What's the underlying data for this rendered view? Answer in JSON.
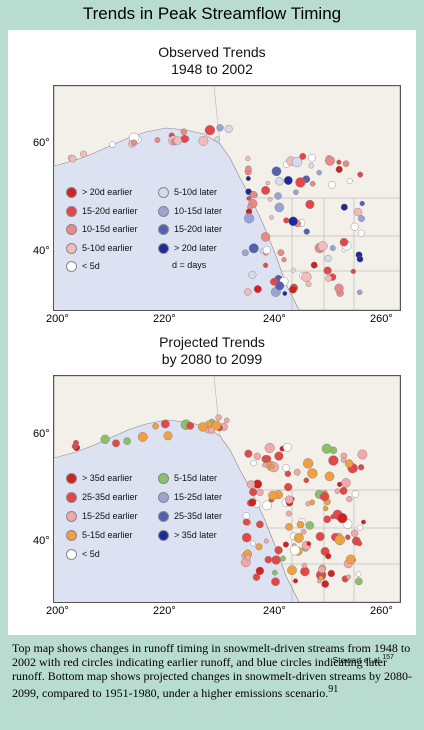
{
  "header": {
    "title": "Trends in Peak Streamflow Timing"
  },
  "maps": [
    {
      "title": "Observed Trends",
      "subtitle": "1948 to 2002",
      "x_ticks": [
        "200°",
        "220°",
        "240°",
        "260°"
      ],
      "y_ticks": [
        "60°",
        "40°"
      ],
      "legend": [
        {
          "label": "> 20d earlier",
          "color": "#d42020"
        },
        {
          "label": "15-20d earlier",
          "color": "#e24848"
        },
        {
          "label": "10-15d earlier",
          "color": "#ea8a88"
        },
        {
          "label": "5-10d earlier",
          "color": "#f2bcbc"
        },
        {
          "label": "< 5d",
          "color": "#ffffff"
        },
        {
          "label": "5-10d later",
          "color": "#d6dcec"
        },
        {
          "label": "10-15d later",
          "color": "#9aa3d3"
        },
        {
          "label": "15-20d later",
          "color": "#5560b2"
        },
        {
          "label": "> 20d later",
          "color": "#202a96"
        }
      ],
      "note": "d = days"
    },
    {
      "title": "Projected Trends",
      "subtitle": "by 2080 to 2099",
      "x_ticks": [
        "200°",
        "220°",
        "240°",
        "260°"
      ],
      "y_ticks": [
        "60°",
        "40°"
      ],
      "legend": [
        {
          "label": "> 35d earlier",
          "color": "#d42020"
        },
        {
          "label": "25-35d earlier",
          "color": "#e24848"
        },
        {
          "label": "15-25d earlier",
          "color": "#f0a8a8"
        },
        {
          "label": "5-15d earlier",
          "color": "#f0a040"
        },
        {
          "label": "< 5d",
          "color": "#ffffff"
        },
        {
          "label": "5-15d later",
          "color": "#8cc068"
        },
        {
          "label": "15-25d later",
          "color": "#9aa3d3"
        },
        {
          "label": "25-35d later",
          "color": "#5560b2"
        },
        {
          "label": "> 35d later",
          "color": "#202a96"
        }
      ]
    }
  ],
  "credit": {
    "text": "Stewart et al.",
    "sup": "157"
  },
  "caption": {
    "text": "Top map shows changes in runoff timing in snowmelt-driven streams from 1948 to 2002 with red circles indicating earlier runoff, and blue circles indicating later runoff. Bottom map shows projected changes in snowmelt-driven streams by 2080-2099, compared to 1951-1980, under a higher emissions scenario.",
    "sup": "91"
  },
  "colors": {
    "background": "#b9dcd1",
    "ocean": "#dde2f2",
    "land": "#f3f0ea"
  }
}
